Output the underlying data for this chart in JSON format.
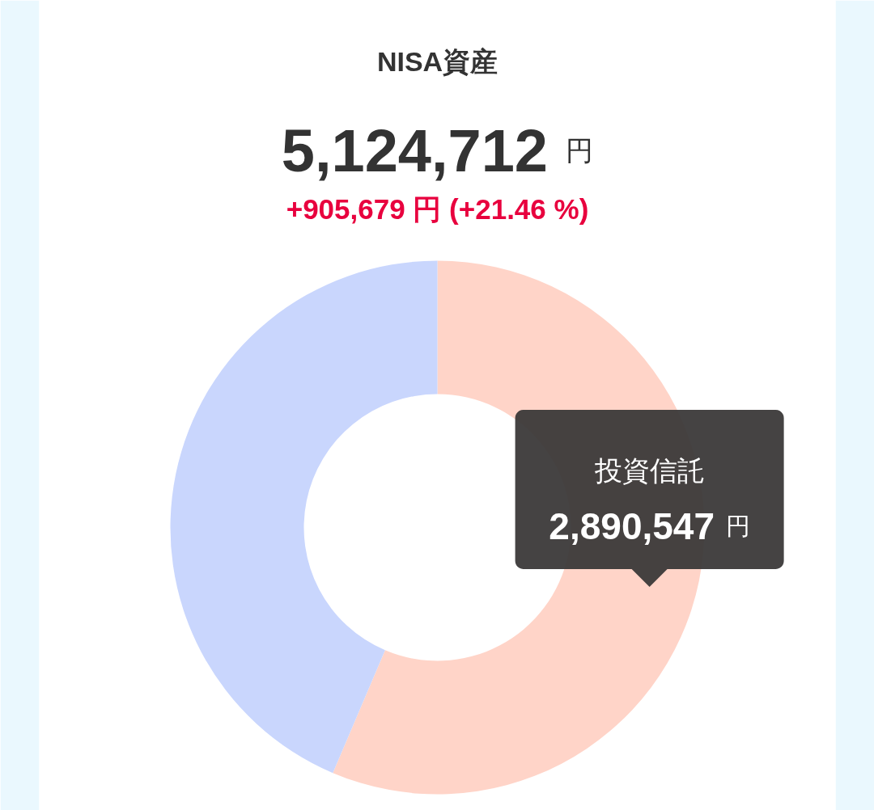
{
  "chart_data": {
    "type": "donut",
    "title": "NISA資産",
    "subtitle": "5,124,712 円",
    "annotations": [
      "+905,679 円 (+21.46 %)"
    ],
    "categories": [
      "投資信託",
      null
    ],
    "values": [
      2890547,
      2234165
    ],
    "colors": [
      "#ffd4c8",
      "#c9d6fd"
    ],
    "value_labels": [
      "2,890,547 円",
      null
    ]
  }
}
